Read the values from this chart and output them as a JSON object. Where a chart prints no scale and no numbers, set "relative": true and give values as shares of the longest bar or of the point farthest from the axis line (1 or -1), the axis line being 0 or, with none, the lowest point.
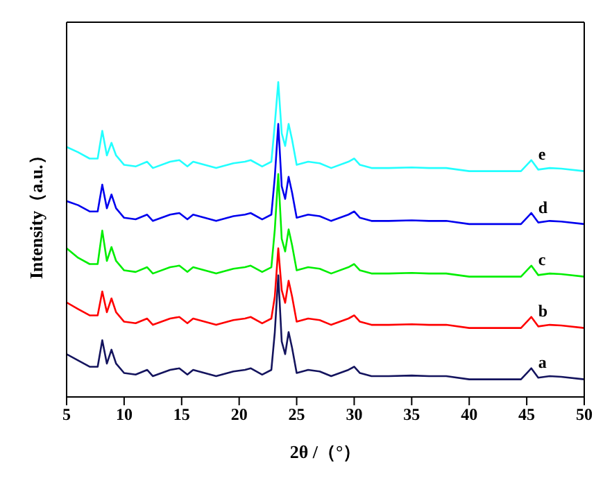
{
  "chart_data": {
    "type": "line",
    "relative": true,
    "xlabel": "2θ /（°）",
    "ylabel": "Intensity（a.u.）",
    "legend": false,
    "grid": false,
    "marker": "none",
    "line_style": "solid",
    "x": [
      5,
      6,
      7,
      7.7,
      8.1,
      8.5,
      8.9,
      9.3,
      10,
      11,
      12,
      12.5,
      14,
      14.8,
      15.5,
      16,
      18,
      19.5,
      20.5,
      21,
      22,
      22.8,
      23.1,
      23.4,
      23.7,
      24.0,
      24.3,
      24.6,
      25,
      26,
      27,
      28,
      29.5,
      30,
      30.5,
      31.5,
      33,
      35,
      36.5,
      38,
      40,
      44.5,
      45.4,
      46,
      47,
      48,
      50
    ],
    "xlim": [
      5,
      50
    ],
    "xticks": [
      5,
      10,
      15,
      20,
      25,
      30,
      35,
      40,
      45,
      50
    ],
    "series": [
      {
        "name": "a",
        "color": "#14145e",
        "values": [
          0.136,
          0.116,
          0.096,
          0.096,
          0.18,
          0.106,
          0.15,
          0.106,
          0.076,
          0.071,
          0.086,
          0.066,
          0.086,
          0.091,
          0.071,
          0.086,
          0.066,
          0.081,
          0.086,
          0.091,
          0.071,
          0.086,
          0.206,
          0.386,
          0.176,
          0.136,
          0.206,
          0.156,
          0.076,
          0.086,
          0.081,
          0.066,
          0.086,
          0.096,
          0.076,
          0.066,
          0.066,
          0.068,
          0.066,
          0.066,
          0.056,
          0.056,
          0.091,
          0.061,
          0.066,
          0.064,
          0.056
        ]
      },
      {
        "name": "b",
        "color": "#ff0000",
        "values": [
          0.3,
          0.279,
          0.259,
          0.259,
          0.335,
          0.269,
          0.313,
          0.269,
          0.239,
          0.234,
          0.249,
          0.229,
          0.249,
          0.254,
          0.234,
          0.249,
          0.229,
          0.244,
          0.249,
          0.254,
          0.234,
          0.249,
          0.319,
          0.472,
          0.339,
          0.299,
          0.369,
          0.319,
          0.239,
          0.249,
          0.244,
          0.229,
          0.249,
          0.259,
          0.239,
          0.229,
          0.229,
          0.231,
          0.229,
          0.229,
          0.219,
          0.219,
          0.254,
          0.224,
          0.229,
          0.227,
          0.219
        ]
      },
      {
        "name": "c",
        "color": "#00ee00",
        "values": [
          0.472,
          0.442,
          0.422,
          0.422,
          0.528,
          0.432,
          0.476,
          0.432,
          0.402,
          0.397,
          0.412,
          0.392,
          0.412,
          0.417,
          0.397,
          0.412,
          0.392,
          0.407,
          0.412,
          0.417,
          0.397,
          0.412,
          0.532,
          0.708,
          0.502,
          0.462,
          0.532,
          0.482,
          0.402,
          0.412,
          0.407,
          0.392,
          0.412,
          0.422,
          0.402,
          0.392,
          0.392,
          0.394,
          0.392,
          0.392,
          0.382,
          0.382,
          0.417,
          0.387,
          0.392,
          0.39,
          0.382
        ]
      },
      {
        "name": "d",
        "color": "#0000ee",
        "values": [
          0.622,
          0.609,
          0.589,
          0.589,
          0.674,
          0.599,
          0.643,
          0.599,
          0.569,
          0.564,
          0.579,
          0.559,
          0.579,
          0.584,
          0.564,
          0.579,
          0.559,
          0.574,
          0.579,
          0.584,
          0.564,
          0.579,
          0.699,
          0.867,
          0.669,
          0.629,
          0.699,
          0.649,
          0.569,
          0.579,
          0.574,
          0.559,
          0.579,
          0.589,
          0.569,
          0.559,
          0.559,
          0.561,
          0.559,
          0.559,
          0.549,
          0.549,
          0.584,
          0.554,
          0.559,
          0.557,
          0.549
        ]
      },
      {
        "name": "e",
        "color": "#22ffff",
        "values": [
          0.794,
          0.777,
          0.757,
          0.757,
          0.845,
          0.767,
          0.807,
          0.767,
          0.737,
          0.732,
          0.747,
          0.727,
          0.747,
          0.752,
          0.732,
          0.747,
          0.727,
          0.742,
          0.747,
          0.752,
          0.732,
          0.747,
          0.867,
          1,
          0.837,
          0.797,
          0.867,
          0.817,
          0.737,
          0.747,
          0.742,
          0.727,
          0.747,
          0.757,
          0.737,
          0.727,
          0.727,
          0.729,
          0.727,
          0.727,
          0.717,
          0.717,
          0.752,
          0.722,
          0.727,
          0.725,
          0.717
        ]
      }
    ]
  }
}
